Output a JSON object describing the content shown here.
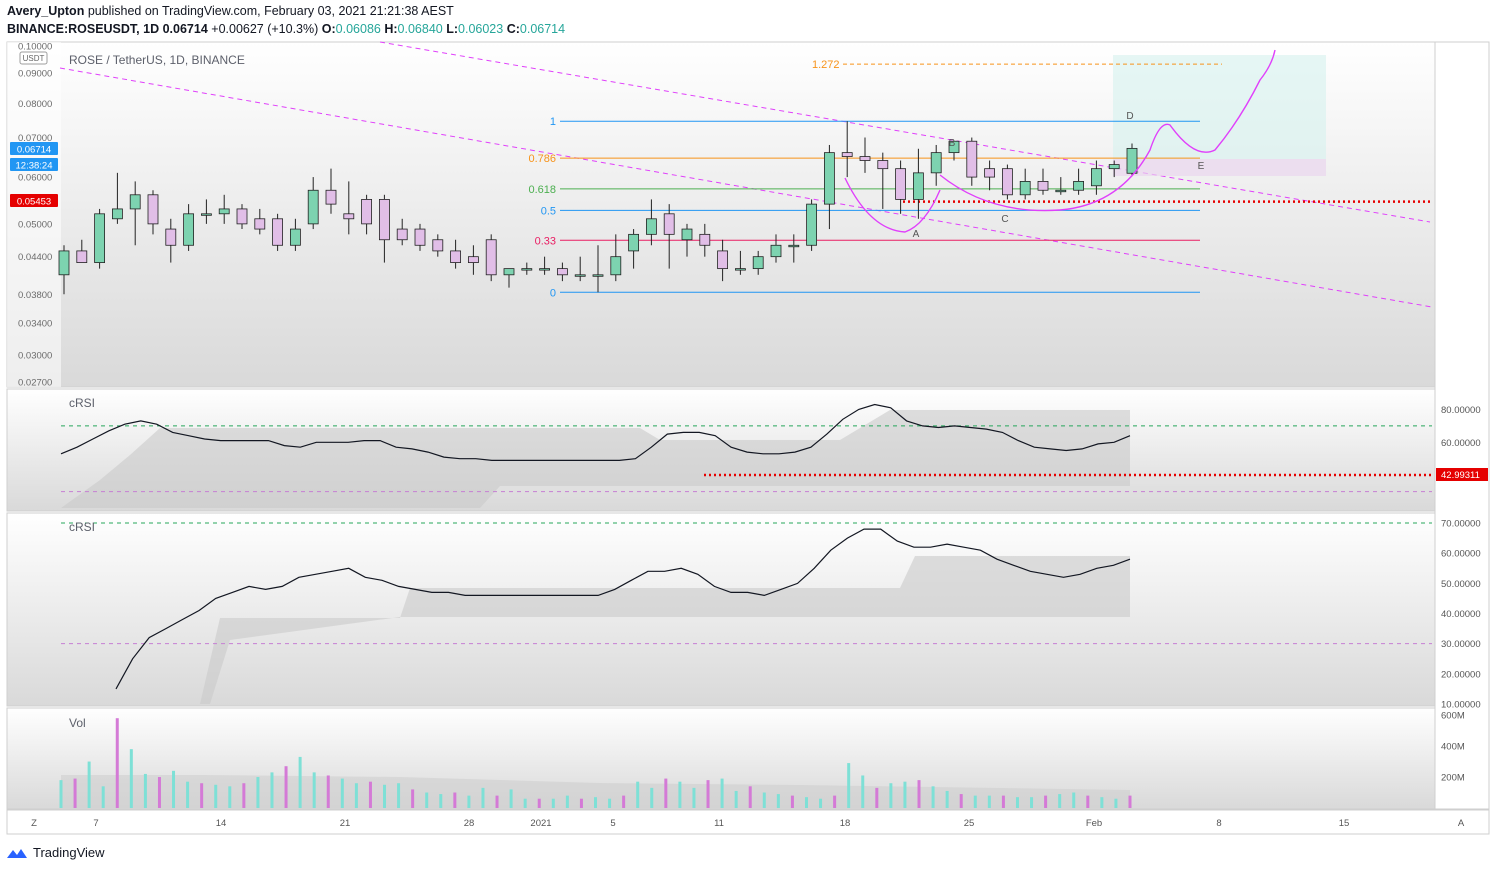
{
  "header": {
    "author": "Avery_Upton",
    "published_text": "published on TradingView.com, February 03, 2021 21:21:38 AEST",
    "symbol_line": "BINANCE:ROSEUSDT, 1D",
    "last": "0.06714",
    "change": "+0.00627 (+10.3%)",
    "open_label": "O:",
    "open": "0.06086",
    "high_label": "H:",
    "high": "0.06840",
    "low_label": "L:",
    "low": "0.06023",
    "close_label": "C:",
    "close": "0.06714"
  },
  "price_pane": {
    "legend": "ROSE / TetherUS, 1D, BINANCE",
    "currency_badge": "USDT",
    "price_badge": "0.06714",
    "countdown_badge": "12:38:24",
    "level_badge": "0.05453",
    "axis_ticks": [
      "0.10000",
      "0.09000",
      "0.08000",
      "0.07000",
      "0.06000",
      "0.05000",
      "0.04400",
      "0.03800",
      "0.03400",
      "0.03000",
      "0.02700"
    ],
    "fib_levels": [
      {
        "label": "1.272",
        "value": 0.0932,
        "color": "#f7931a"
      },
      {
        "label": "1",
        "value": 0.0746,
        "color": "#2196f3"
      },
      {
        "label": "0.786",
        "value": 0.0646,
        "color": "#f7931a"
      },
      {
        "label": "0.618",
        "value": 0.0573,
        "color": "#4caf50"
      },
      {
        "label": "0.5",
        "value": 0.0527,
        "color": "#2196f3"
      },
      {
        "label": "0.33",
        "value": 0.0469,
        "color": "#e91e63"
      },
      {
        "label": "0",
        "value": 0.0383,
        "color": "#2196f3"
      }
    ],
    "pattern_labels": [
      "A",
      "B",
      "C",
      "D",
      "E"
    ],
    "support_level": 0.05453
  },
  "x_axis": {
    "labels": [
      "7",
      "14",
      "21",
      "28",
      "2021",
      "5",
      "11",
      "18",
      "25",
      "Feb",
      "8",
      "15"
    ],
    "left_button": "Z",
    "right_button": "A"
  },
  "crsi_pane_1": {
    "label": "cRSI",
    "axis_ticks": [
      "80.00000",
      "60.00000"
    ],
    "level_badge": "42.99311",
    "upper_band": 70,
    "lower_band": 30
  },
  "crsi_pane_2": {
    "label": "cRSI",
    "axis_ticks": [
      "70.00000",
      "60.00000",
      "50.00000",
      "40.00000",
      "30.00000",
      "20.00000",
      "10.00000"
    ],
    "upper_band": 70,
    "lower_band": 30
  },
  "volume_pane": {
    "label": "Vol",
    "axis_ticks": [
      "600M",
      "400M",
      "200M"
    ]
  },
  "footer": {
    "brand": "TradingView"
  },
  "colors": {
    "up": "#7dd3b0",
    "down": "#e1bee7",
    "ma_line": "#e040fb",
    "support": "#e50000"
  },
  "chart_data": [
    {
      "type": "candlestick",
      "title": "ROSE / TetherUS, 1D, BINANCE",
      "ylim": [
        0.027,
        0.1
      ],
      "log_scale": true,
      "candles": [
        [
          0.041,
          0.046,
          0.038,
          0.045
        ],
        [
          0.045,
          0.047,
          0.043,
          0.043
        ],
        [
          0.043,
          0.053,
          0.042,
          0.052
        ],
        [
          0.051,
          0.061,
          0.05,
          0.053
        ],
        [
          0.053,
          0.059,
          0.046,
          0.056
        ],
        [
          0.056,
          0.057,
          0.048,
          0.05
        ],
        [
          0.049,
          0.051,
          0.043,
          0.046
        ],
        [
          0.046,
          0.054,
          0.045,
          0.052
        ],
        [
          0.052,
          0.055,
          0.05,
          0.052
        ],
        [
          0.052,
          0.056,
          0.05,
          0.053
        ],
        [
          0.053,
          0.054,
          0.049,
          0.05
        ],
        [
          0.051,
          0.053,
          0.048,
          0.049
        ],
        [
          0.051,
          0.052,
          0.045,
          0.046
        ],
        [
          0.046,
          0.051,
          0.045,
          0.049
        ],
        [
          0.05,
          0.06,
          0.049,
          0.057
        ],
        [
          0.057,
          0.062,
          0.052,
          0.054
        ],
        [
          0.052,
          0.059,
          0.048,
          0.051
        ],
        [
          0.055,
          0.056,
          0.048,
          0.05
        ],
        [
          0.055,
          0.056,
          0.043,
          0.047
        ],
        [
          0.049,
          0.051,
          0.046,
          0.047
        ],
        [
          0.049,
          0.05,
          0.045,
          0.046
        ],
        [
          0.047,
          0.048,
          0.044,
          0.045
        ],
        [
          0.045,
          0.047,
          0.042,
          0.043
        ],
        [
          0.044,
          0.046,
          0.041,
          0.043
        ],
        [
          0.047,
          0.048,
          0.04,
          0.041
        ],
        [
          0.041,
          0.042,
          0.039,
          0.042
        ],
        [
          0.042,
          0.043,
          0.041,
          0.042
        ],
        [
          0.042,
          0.044,
          0.041,
          0.042
        ],
        [
          0.042,
          0.043,
          0.04,
          0.041
        ],
        [
          0.041,
          0.044,
          0.04,
          0.041
        ],
        [
          0.041,
          0.046,
          0.0383,
          0.041
        ],
        [
          0.041,
          0.048,
          0.04,
          0.044
        ],
        [
          0.045,
          0.049,
          0.042,
          0.048
        ],
        [
          0.048,
          0.055,
          0.046,
          0.051
        ],
        [
          0.052,
          0.054,
          0.042,
          0.048
        ],
        [
          0.047,
          0.05,
          0.044,
          0.049
        ],
        [
          0.048,
          0.05,
          0.044,
          0.046
        ],
        [
          0.045,
          0.047,
          0.04,
          0.042
        ],
        [
          0.042,
          0.045,
          0.041,
          0.042
        ],
        [
          0.042,
          0.045,
          0.041,
          0.044
        ],
        [
          0.044,
          0.048,
          0.043,
          0.046
        ],
        [
          0.046,
          0.048,
          0.043,
          0.046
        ],
        [
          0.046,
          0.055,
          0.045,
          0.054
        ],
        [
          0.054,
          0.068,
          0.049,
          0.066
        ],
        [
          0.066,
          0.0746,
          0.06,
          0.065
        ],
        [
          0.065,
          0.07,
          0.061,
          0.064
        ],
        [
          0.064,
          0.066,
          0.053,
          0.062
        ],
        [
          0.062,
          0.064,
          0.052,
          0.055
        ],
        [
          0.055,
          0.067,
          0.051,
          0.061
        ],
        [
          0.061,
          0.068,
          0.058,
          0.066
        ],
        [
          0.066,
          0.069,
          0.064,
          0.069
        ],
        [
          0.069,
          0.07,
          0.058,
          0.06
        ],
        [
          0.062,
          0.064,
          0.057,
          0.06
        ],
        [
          0.062,
          0.063,
          0.055,
          0.056
        ],
        [
          0.056,
          0.062,
          0.055,
          0.059
        ],
        [
          0.059,
          0.062,
          0.056,
          0.057
        ],
        [
          0.057,
          0.06,
          0.056,
          0.057
        ],
        [
          0.057,
          0.062,
          0.056,
          0.059
        ],
        [
          0.058,
          0.064,
          0.056,
          0.062
        ],
        [
          0.062,
          0.064,
          0.06,
          0.063
        ],
        [
          0.0609,
          0.0684,
          0.0602,
          0.0671
        ]
      ]
    },
    {
      "type": "line",
      "title": "cRSI",
      "ylim": [
        20,
        90
      ],
      "series": [
        {
          "values": [
            53,
            57,
            62,
            67,
            71,
            73,
            71,
            66,
            64,
            62,
            61,
            61,
            61,
            61,
            58,
            57,
            60,
            60,
            60,
            61,
            61,
            57,
            56,
            54,
            51,
            50,
            50,
            49,
            49,
            49,
            49,
            49,
            49,
            49,
            49,
            49,
            50,
            57,
            65,
            66,
            66,
            64,
            57,
            54,
            53,
            53,
            54,
            57,
            65,
            74,
            80,
            83,
            81,
            73,
            70,
            69,
            70,
            69,
            68,
            66,
            61,
            57,
            56,
            55,
            56,
            59,
            60,
            64
          ]
        }
      ]
    },
    {
      "type": "line",
      "title": "cRSI",
      "ylim": [
        10,
        72
      ],
      "series": [
        {
          "values": [
            15,
            25,
            32,
            35,
            38,
            41,
            45,
            47,
            49,
            48,
            49,
            52,
            53,
            54,
            55,
            52,
            51,
            49,
            48,
            47,
            47,
            46,
            46,
            46,
            46,
            46,
            46,
            46,
            46,
            46,
            48,
            51,
            54,
            54,
            55,
            53,
            49,
            47,
            47,
            46,
            48,
            50,
            55,
            61,
            65,
            68,
            68,
            64,
            62,
            62,
            63,
            62,
            61,
            58,
            56,
            54,
            53,
            52,
            53,
            55,
            56,
            58
          ]
        }
      ]
    },
    {
      "type": "bar",
      "title": "Vol",
      "ylim": [
        0,
        620
      ],
      "values": [
        180,
        190,
        300,
        140,
        580,
        380,
        220,
        200,
        240,
        170,
        160,
        150,
        140,
        160,
        200,
        230,
        270,
        330,
        230,
        210,
        190,
        160,
        170,
        150,
        160,
        120,
        100,
        90,
        100,
        80,
        130,
        80,
        120,
        60,
        60,
        60,
        80,
        60,
        70,
        60,
        80,
        170,
        130,
        190,
        170,
        130,
        180,
        190,
        110,
        140,
        100,
        90,
        80,
        70,
        60,
        80,
        290,
        210,
        130,
        160,
        170,
        180,
        140,
        110,
        90,
        80,
        80,
        80,
        70,
        70,
        80,
        90,
        100,
        80,
        70,
        60,
        80
      ]
    }
  ]
}
